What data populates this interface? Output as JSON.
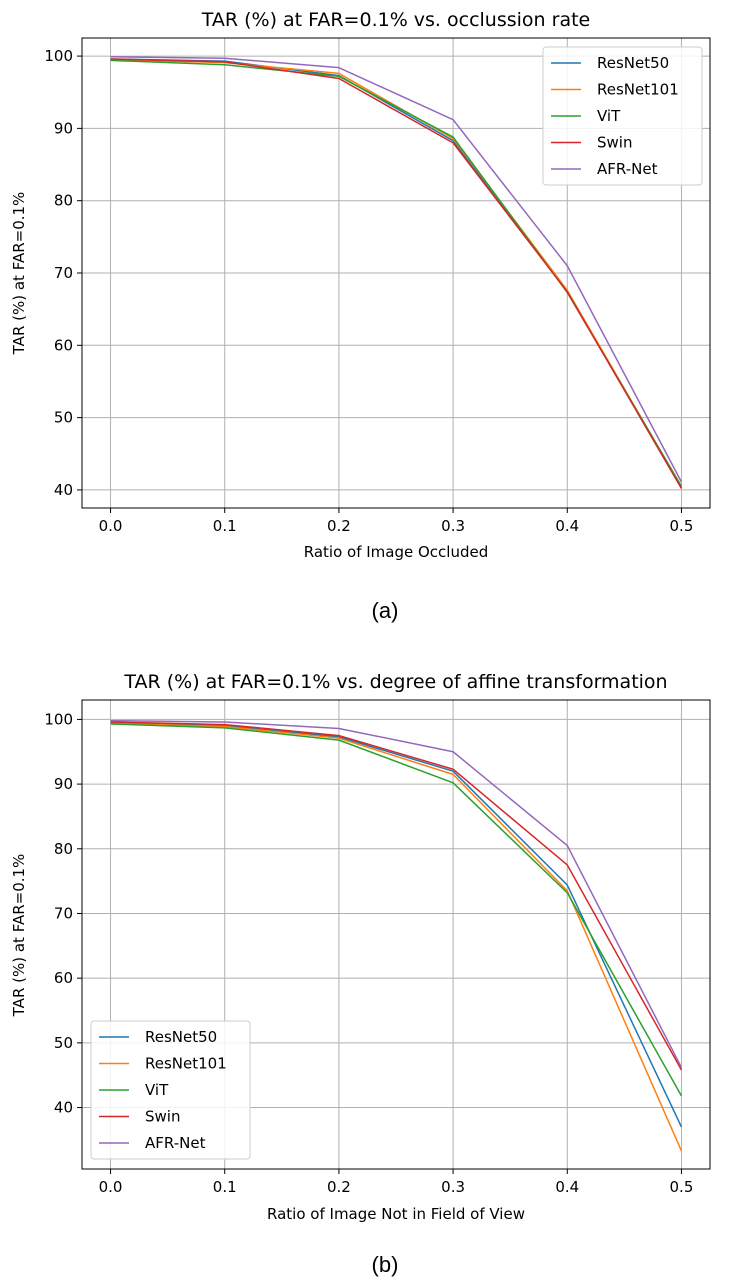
{
  "colors": {
    "ResNet50": "#1f77b4",
    "ResNet101": "#ff7f0e",
    "ViT": "#2ca02c",
    "Swin": "#d62728",
    "AFR-Net": "#9467bd"
  },
  "chart_data": [
    {
      "type": "line",
      "title": "TAR (%) at FAR=0.1% vs. occlussion rate",
      "xlabel": "Ratio of Image Occluded",
      "ylabel": "TAR (%) at FAR=0.1%",
      "caption": "(a)",
      "x": [
        0.0,
        0.1,
        0.2,
        0.3,
        0.4,
        0.5
      ],
      "x_ticks": [
        "0.0",
        "0.1",
        "0.2",
        "0.3",
        "0.4",
        "0.5"
      ],
      "y_ticks": [
        "40",
        "50",
        "60",
        "70",
        "80",
        "90",
        "100"
      ],
      "xlim": [
        -0.025,
        0.525
      ],
      "ylim": [
        37.5,
        102.5
      ],
      "grid": true,
      "legend_position": "upper right",
      "series": [
        {
          "name": "ResNet50",
          "values": [
            99.6,
            99.3,
            97.3,
            88.3,
            67.5,
            40.3
          ]
        },
        {
          "name": "ResNet101",
          "values": [
            99.5,
            99.1,
            97.6,
            88.6,
            67.6,
            40.4
          ]
        },
        {
          "name": "ViT",
          "values": [
            99.4,
            98.8,
            97.2,
            88.8,
            67.3,
            40.5
          ]
        },
        {
          "name": "Swin",
          "values": [
            99.6,
            99.2,
            96.9,
            88.0,
            67.4,
            40.2
          ]
        },
        {
          "name": "AFR-Net",
          "values": [
            99.9,
            99.7,
            98.4,
            91.2,
            71.0,
            41.1
          ]
        }
      ]
    },
    {
      "type": "line",
      "title": "TAR (%) at FAR=0.1% vs. degree of affine transformation",
      "xlabel": "Ratio of Image Not in Field of View",
      "ylabel": "TAR (%) at FAR=0.1%",
      "caption": "(b)",
      "x": [
        0.0,
        0.1,
        0.2,
        0.3,
        0.4,
        0.5
      ],
      "x_ticks": [
        "0.0",
        "0.1",
        "0.2",
        "0.3",
        "0.4",
        "0.5"
      ],
      "y_ticks": [
        "40",
        "50",
        "60",
        "70",
        "80",
        "90",
        "100"
      ],
      "xlim": [
        -0.025,
        0.525
      ],
      "ylim": [
        30.5,
        103.0
      ],
      "grid": true,
      "legend_position": "lower left",
      "series": [
        {
          "name": "ResNet50",
          "values": [
            99.5,
            99.0,
            97.3,
            92.0,
            74.4,
            37.0
          ]
        },
        {
          "name": "ResNet101",
          "values": [
            99.4,
            98.9,
            97.1,
            91.5,
            73.5,
            33.3
          ]
        },
        {
          "name": "ViT",
          "values": [
            99.3,
            98.7,
            96.8,
            90.2,
            73.2,
            41.8
          ]
        },
        {
          "name": "Swin",
          "values": [
            99.6,
            99.2,
            97.5,
            92.3,
            77.5,
            45.8
          ]
        },
        {
          "name": "AFR-Net",
          "values": [
            99.8,
            99.6,
            98.6,
            95.0,
            80.5,
            46.2
          ]
        }
      ]
    }
  ]
}
